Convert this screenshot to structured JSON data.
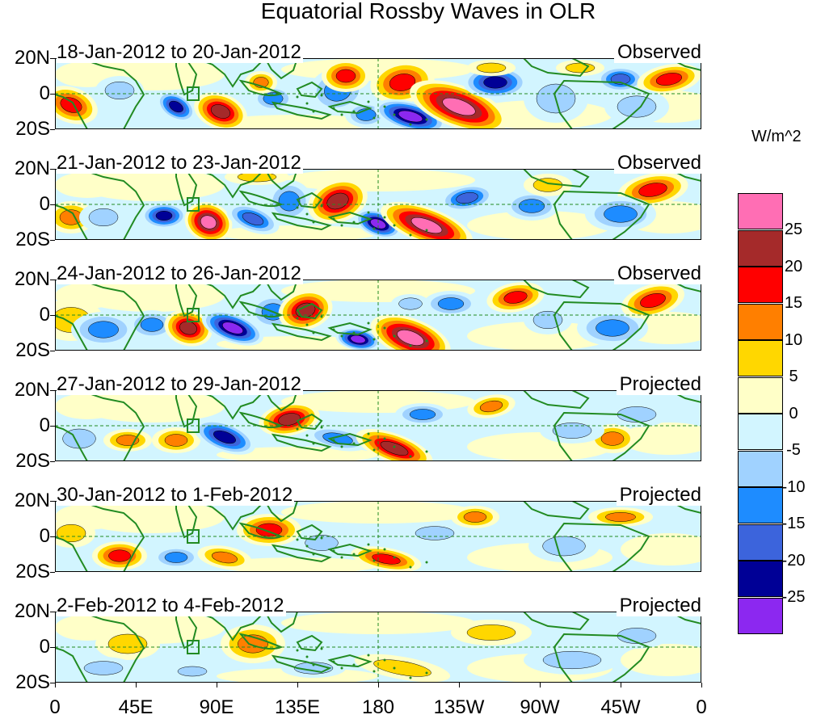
{
  "title": "Equatorial Rossby Waves in OLR",
  "y_labels": [
    "20N",
    "0",
    "20S"
  ],
  "x_labels": [
    "0",
    "45E",
    "90E",
    "135E",
    "180",
    "135W",
    "90W",
    "45W",
    "0"
  ],
  "colorbar": {
    "unit": "W/m^2",
    "labels": [
      "25",
      "20",
      "15",
      "10",
      "5",
      "0",
      "-5",
      "-10",
      "-15",
      "-20",
      "-25"
    ],
    "colors": [
      "#ff6eb4",
      "#a52a2a",
      "#ff0000",
      "#ff7f00",
      "#ffd700",
      "#ffffc8",
      "#d2f5ff",
      "#a0d2ff",
      "#1e8cff",
      "#3c64dc",
      "#000096",
      "#8c28f0"
    ]
  },
  "colors": {
    "land": "#228b22",
    "grid": "#228b22"
  },
  "panels": [
    {
      "date": "18-Jan-2012 to 20-Jan-2012",
      "status": "Observed"
    },
    {
      "date": "21-Jan-2012 to 23-Jan-2012",
      "status": "Observed"
    },
    {
      "date": "24-Jan-2012 to 26-Jan-2012",
      "status": "Observed"
    },
    {
      "date": "27-Jan-2012 to 29-Jan-2012",
      "status": "Projected"
    },
    {
      "date": "30-Jan-2012 to 1-Feb-2012",
      "status": "Projected"
    },
    {
      "date": "2-Feb-2012 to 4-Feb-2012",
      "status": "Projected"
    }
  ]
}
